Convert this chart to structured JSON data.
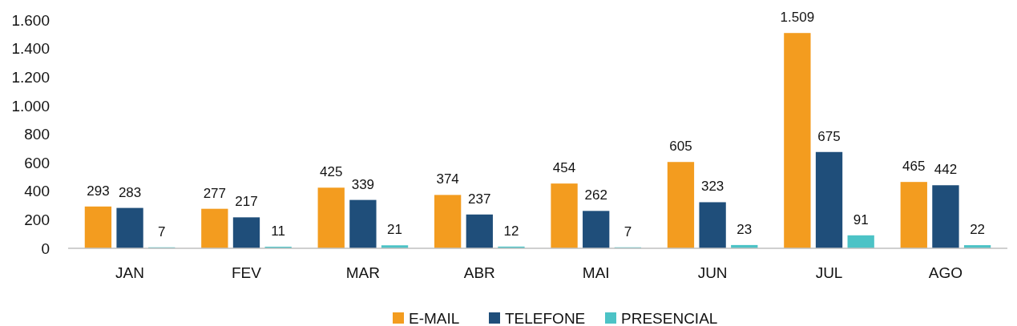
{
  "chart_data": {
    "type": "bar",
    "categories": [
      "JAN",
      "FEV",
      "MAR",
      "ABR",
      "MAI",
      "JUN",
      "JUL",
      "AGO"
    ],
    "series": [
      {
        "name": "E-MAIL",
        "color": "#f39c1f",
        "values": [
          293,
          277,
          425,
          374,
          454,
          605,
          1509,
          465
        ],
        "value_labels": [
          "293",
          "277",
          "425",
          "374",
          "454",
          "605",
          "1.509",
          "465"
        ]
      },
      {
        "name": "TELEFONE",
        "color": "#1f4e7a",
        "values": [
          283,
          217,
          339,
          237,
          262,
          323,
          675,
          442
        ],
        "value_labels": [
          "283",
          "217",
          "339",
          "237",
          "262",
          "323",
          "675",
          "442"
        ]
      },
      {
        "name": "PRESENCIAL",
        "color": "#4cc3c6",
        "values": [
          7,
          11,
          21,
          12,
          7,
          23,
          91,
          22
        ],
        "value_labels": [
          "7",
          "11",
          "21",
          "12",
          "7",
          "23",
          "91",
          "22"
        ]
      }
    ],
    "ylim": [
      0,
      1600
    ],
    "yticks": [
      0,
      200,
      400,
      600,
      800,
      {
        "value": 1000,
        "label": "1.000"
      },
      {
        "value": 1200,
        "label": "1.200"
      },
      {
        "value": 1400,
        "label": "1.400"
      },
      {
        "value": 1600,
        "label": "1.600"
      }
    ],
    "grid": false,
    "legend": "bottom"
  }
}
